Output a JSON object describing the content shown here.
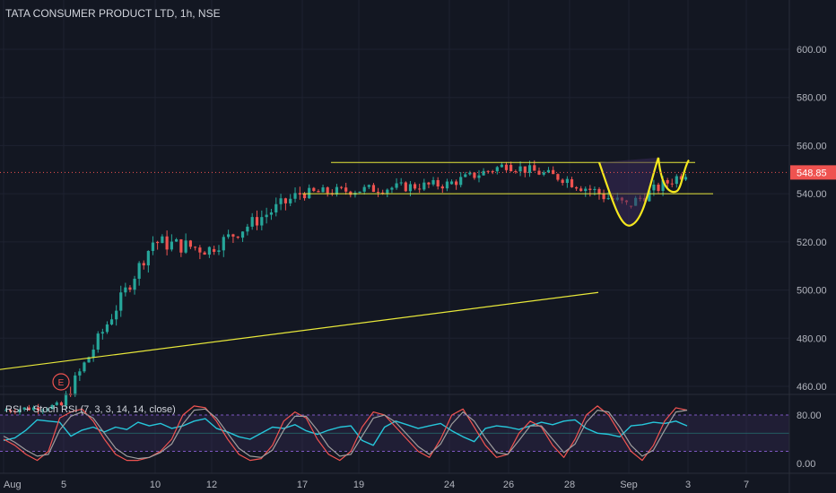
{
  "header": {
    "symbol": "TATA CONSUMER PRODUCT LTD, 1h, NSE"
  },
  "rsi_panel": {
    "title": "RSI + Stoch RSI (7, 3, 3, 14, 14, close)"
  },
  "colors": {
    "background": "#131722",
    "grid": "#1e2230",
    "up": "#26a69a",
    "down": "#ef5350",
    "trendline": "#e8e83a",
    "cup_handle": "#f5e71e",
    "rsi_line": "#26c6da",
    "stoch_k": "#ef5350",
    "stoch_d": "#9e9e9e",
    "last_price_label": "#ef5350",
    "band_fill": "#3a2a5a"
  },
  "chart_data": [
    {
      "type": "candlestick",
      "title": "TATA CONSUMER PRODUCT LTD, 1h, NSE",
      "x_ticks": [
        "Aug",
        "5",
        "10",
        "12",
        "17",
        "19",
        "24",
        "26",
        "28",
        "Sep",
        "3",
        "7"
      ],
      "y_ticks": [
        "460.00",
        "480.00",
        "500.00",
        "520.00",
        "540.00",
        "560.00",
        "580.00",
        "600.00"
      ],
      "ylim": [
        455,
        620
      ],
      "last_price": 548.85,
      "last_price_label": "548.85",
      "event_marker": "E",
      "segments": [
        {
          "from_tick": "Aug",
          "to_tick": "5",
          "start": 450,
          "end": 452,
          "vol": 1.5
        },
        {
          "from_tick": "5",
          "to_tick": "10",
          "start": 452,
          "end": 520,
          "vol": 3
        },
        {
          "from_tick": "10",
          "to_tick": "12",
          "start": 520,
          "end": 517,
          "vol": 3.5
        },
        {
          "from_tick": "12",
          "to_tick": "17",
          "start": 517,
          "end": 540,
          "vol": 3
        },
        {
          "from_tick": "17",
          "to_tick": "24",
          "start": 540,
          "end": 544,
          "vol": 2.2
        },
        {
          "from_tick": "24",
          "to_tick": "26",
          "start": 544,
          "end": 552,
          "vol": 2.2
        },
        {
          "from_tick": "26",
          "to_tick": "28",
          "start": 552,
          "end": 546,
          "vol": 2.2
        },
        {
          "from_tick": "28",
          "to_tick": "Sep",
          "start": 546,
          "end": 535,
          "vol": 3
        },
        {
          "from_tick": "Sep",
          "to_tick": "3",
          "start": 535,
          "end": 549,
          "vol": 2.5
        }
      ],
      "annotations": [
        {
          "type": "channel",
          "upper": 553,
          "lower": 540,
          "from_tick": "17",
          "to_tick": "3"
        },
        {
          "type": "trendline",
          "from_tick": "Aug",
          "from_price": 467,
          "to_tick": "28",
          "to_price": 499
        },
        {
          "type": "cup",
          "left_rim": 553,
          "bottom": 527,
          "right_rim": 555
        },
        {
          "type": "handle",
          "bottom": 541,
          "right_rim": 554
        }
      ]
    },
    {
      "type": "line",
      "title": "RSI + Stoch RSI (7, 3, 3, 14, 14, close)",
      "y_ticks": [
        "0.00",
        "80.00"
      ],
      "ylim": [
        -10,
        110
      ],
      "bands": [
        20,
        80
      ],
      "series": [
        {
          "name": "RSI",
          "values": [
            38,
            42,
            55,
            72,
            70,
            68,
            45,
            55,
            60,
            52,
            60,
            56,
            68,
            62,
            66,
            58,
            62,
            70,
            74,
            58,
            52,
            44,
            40,
            50,
            60,
            58,
            64,
            54,
            48,
            55,
            60,
            62,
            38,
            30,
            60,
            70,
            64,
            58,
            62,
            66,
            54,
            44,
            36,
            58,
            62,
            60,
            56,
            62,
            68,
            64,
            70,
            72,
            58,
            50,
            48,
            44,
            62,
            64,
            68,
            66,
            70,
            62
          ]
        },
        {
          "name": "Stoch K",
          "values": [
            40,
            30,
            15,
            5,
            20,
            75,
            85,
            90,
            70,
            40,
            15,
            5,
            5,
            10,
            20,
            40,
            80,
            95,
            92,
            70,
            40,
            15,
            5,
            8,
            30,
            70,
            85,
            75,
            40,
            15,
            5,
            20,
            60,
            85,
            80,
            60,
            40,
            20,
            10,
            40,
            80,
            90,
            60,
            30,
            10,
            15,
            50,
            70,
            60,
            30,
            10,
            40,
            80,
            95,
            80,
            50,
            20,
            5,
            30,
            70,
            92,
            88
          ]
        },
        {
          "name": "Stoch D",
          "values": [
            45,
            35,
            22,
            12,
            15,
            55,
            78,
            85,
            75,
            50,
            25,
            12,
            8,
            10,
            18,
            32,
            65,
            88,
            90,
            75,
            50,
            25,
            12,
            10,
            22,
            55,
            78,
            78,
            55,
            28,
            12,
            15,
            45,
            75,
            80,
            68,
            48,
            28,
            15,
            32,
            65,
            85,
            70,
            42,
            18,
            15,
            38,
            62,
            62,
            40,
            18,
            32,
            68,
            88,
            85,
            60,
            30,
            12,
            22,
            55,
            85,
            88
          ]
        }
      ]
    }
  ]
}
